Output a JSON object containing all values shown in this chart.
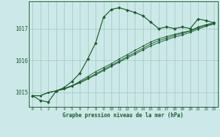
{
  "title": "Graphe pression niveau de la mer (hPa)",
  "bg_color": "#cce8e8",
  "grid_color": "#99c9b8",
  "line_color": "#1a5c2a",
  "xlim": [
    -0.5,
    23.5
  ],
  "ylim": [
    1014.55,
    1017.85
  ],
  "yticks": [
    1015,
    1016,
    1017
  ],
  "xtick_labels": [
    "0",
    "1",
    "2",
    "3",
    "4",
    "5",
    "6",
    "7",
    "8",
    "9",
    "10",
    "11",
    "12",
    "13",
    "14",
    "15",
    "16",
    "17",
    "18",
    "19",
    "20",
    "21",
    "22",
    "23"
  ],
  "series1_x": [
    0,
    1,
    2,
    3,
    4,
    5,
    6,
    7,
    8,
    9,
    10,
    11,
    12,
    13,
    14,
    15,
    16,
    17,
    18,
    19,
    20,
    21,
    22,
    23
  ],
  "series1_y": [
    1014.9,
    1014.75,
    1014.7,
    1015.05,
    1015.15,
    1015.35,
    1015.6,
    1016.05,
    1016.55,
    1017.35,
    1017.6,
    1017.65,
    1017.58,
    1017.5,
    1017.4,
    1017.2,
    1017.0,
    1017.05,
    1017.0,
    1017.05,
    1017.0,
    1017.3,
    1017.25,
    1017.18
  ],
  "series2_x": [
    0,
    1,
    2,
    3,
    4,
    5,
    6,
    7,
    8,
    9,
    10,
    11,
    12,
    13,
    14,
    15,
    16,
    17,
    18,
    19,
    20,
    21,
    22,
    23
  ],
  "series2_y": [
    1014.9,
    1014.9,
    1015.0,
    1015.05,
    1015.1,
    1015.2,
    1015.35,
    1015.5,
    1015.65,
    1015.78,
    1015.9,
    1016.05,
    1016.18,
    1016.32,
    1016.45,
    1016.58,
    1016.68,
    1016.75,
    1016.82,
    1016.88,
    1016.93,
    1017.05,
    1017.12,
    1017.18
  ],
  "series3_x": [
    0,
    1,
    2,
    3,
    4,
    5,
    6,
    7,
    8,
    9,
    10,
    11,
    12,
    13,
    14,
    15,
    16,
    17,
    18,
    19,
    20,
    21,
    22,
    23
  ],
  "series3_y": [
    1014.9,
    1014.9,
    1015.0,
    1015.05,
    1015.12,
    1015.22,
    1015.32,
    1015.45,
    1015.58,
    1015.72,
    1015.85,
    1015.98,
    1016.12,
    1016.25,
    1016.38,
    1016.52,
    1016.62,
    1016.7,
    1016.78,
    1016.85,
    1016.92,
    1017.02,
    1017.1,
    1017.16
  ],
  "series4_x": [
    0,
    1,
    2,
    3,
    4,
    5,
    6,
    7,
    8,
    9,
    10,
    11,
    12,
    13,
    14,
    15,
    16,
    17,
    18,
    19,
    20,
    21,
    22,
    23
  ],
  "series4_y": [
    1014.9,
    1014.9,
    1015.0,
    1015.05,
    1015.12,
    1015.2,
    1015.3,
    1015.42,
    1015.55,
    1015.68,
    1015.82,
    1015.95,
    1016.08,
    1016.2,
    1016.33,
    1016.46,
    1016.56,
    1016.65,
    1016.73,
    1016.8,
    1016.88,
    1016.98,
    1017.07,
    1017.14
  ]
}
